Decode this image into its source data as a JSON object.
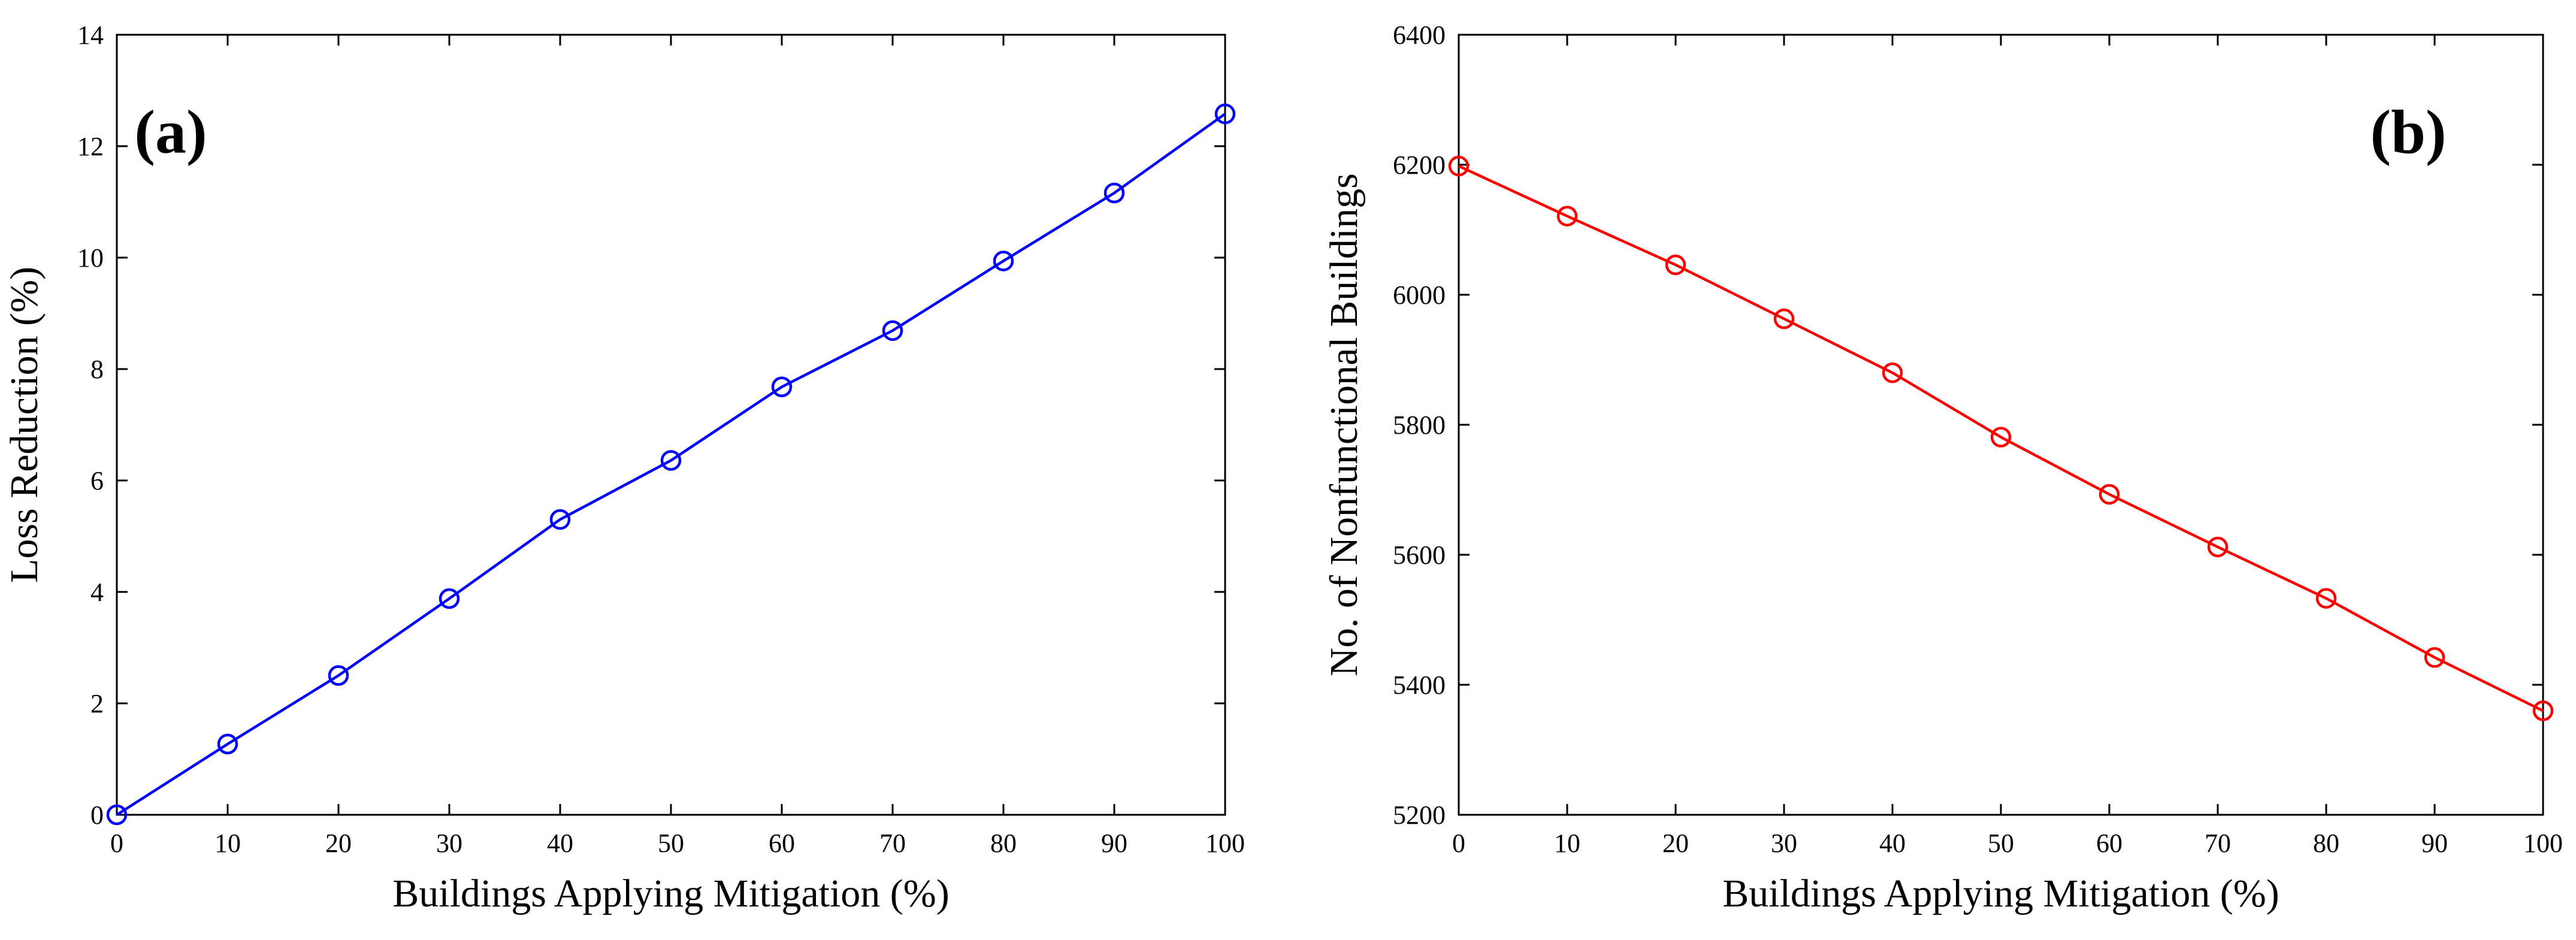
{
  "chart_data": [
    {
      "type": "line",
      "panel_label": "(a)",
      "xlabel": "Buildings Applying Mitigation (%)",
      "ylabel": "Loss Reduction (%)",
      "xlim": [
        0,
        100
      ],
      "ylim": [
        0,
        14
      ],
      "xticks": [
        0,
        10,
        20,
        30,
        40,
        50,
        60,
        70,
        80,
        90,
        100
      ],
      "yticks": [
        0,
        2,
        4,
        6,
        8,
        10,
        12,
        14
      ],
      "color": "#0000ff",
      "marker": "circle",
      "x": [
        0,
        10,
        20,
        30,
        40,
        50,
        60,
        70,
        80,
        90,
        100
      ],
      "y": [
        0,
        1.27,
        2.5,
        3.88,
        5.3,
        6.36,
        7.68,
        8.69,
        9.94,
        11.16,
        12.58
      ]
    },
    {
      "type": "line",
      "panel_label": "(b)",
      "xlabel": "Buildings Applying Mitigation (%)",
      "ylabel": "No. of Nonfunctional Buildings",
      "xlim": [
        0,
        100
      ],
      "ylim": [
        5200,
        6400
      ],
      "xticks": [
        0,
        10,
        20,
        30,
        40,
        50,
        60,
        70,
        80,
        90,
        100
      ],
      "yticks": [
        5200,
        5400,
        5600,
        5800,
        6000,
        6200,
        6400
      ],
      "color": "#ff0000",
      "marker": "circle",
      "x": [
        0,
        10,
        20,
        30,
        40,
        50,
        60,
        70,
        80,
        90,
        100
      ],
      "y": [
        6198,
        6121,
        6046,
        5963,
        5880,
        5781,
        5693,
        5612,
        5533,
        5442,
        5360
      ]
    }
  ]
}
